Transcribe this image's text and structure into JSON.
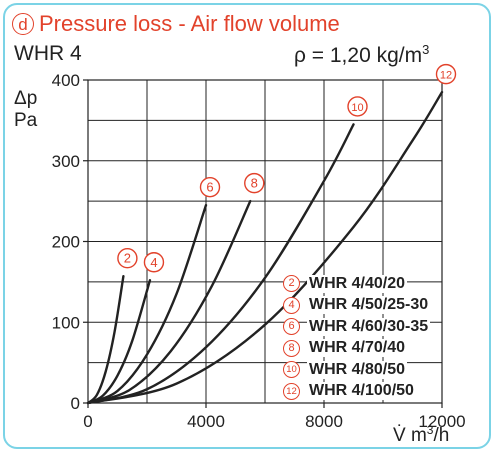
{
  "header": {
    "letter": "d",
    "title": "Pressure loss - Air flow volume",
    "model": "WHR 4",
    "density_label": "ρ = 1,20 kg/m",
    "density_exp": "3"
  },
  "colors": {
    "accent": "#e2422b",
    "frame": "#7bd3e6",
    "grid": "#222222",
    "curve": "#222222"
  },
  "chart_data": {
    "type": "line",
    "ylabel_line1": "Δp",
    "ylabel_line2": "Pa",
    "xlabel_prefix": "V̇ m",
    "xlabel_exp": "3",
    "xlabel_suffix": "/h",
    "xlim": [
      0,
      12000
    ],
    "ylim": [
      0,
      400
    ],
    "xticks": [
      "0",
      "4000",
      "8000",
      "12000"
    ],
    "yticks": [
      "0",
      "100",
      "200",
      "300",
      "400"
    ],
    "grid": true,
    "legend_position": "bottom-right",
    "series": [
      {
        "name": "WHR 4/40/20",
        "badge": "2",
        "x": [
          0,
          300,
          600,
          900,
          1200
        ],
        "y": [
          0,
          10,
          39,
          88,
          157
        ]
      },
      {
        "name": "WHR 4/50/25-30",
        "badge": "4",
        "x": [
          0,
          500,
          1000,
          1500,
          2100
        ],
        "y": [
          0,
          9,
          34,
          77,
          152
        ]
      },
      {
        "name": "WHR 4/60/30-35",
        "badge": "6",
        "x": [
          0,
          1000,
          2000,
          3000,
          4000
        ],
        "y": [
          0,
          15,
          60,
          135,
          245
        ]
      },
      {
        "name": "WHR 4/70/40",
        "badge": "8",
        "x": [
          0,
          1400,
          2800,
          4200,
          5500
        ],
        "y": [
          0,
          16,
          64,
          145,
          250
        ]
      },
      {
        "name": "WHR 4/80/50",
        "badge": "10",
        "x": [
          0,
          2000,
          4000,
          6000,
          8000,
          9000
        ],
        "y": [
          0,
          17,
          69,
          155,
          275,
          345
        ]
      },
      {
        "name": "WHR 4/100/50",
        "badge": "12",
        "x": [
          0,
          3000,
          6000,
          9000,
          11000,
          12000
        ],
        "y": [
          0,
          24,
          97,
          218,
          325,
          385
        ]
      }
    ]
  }
}
